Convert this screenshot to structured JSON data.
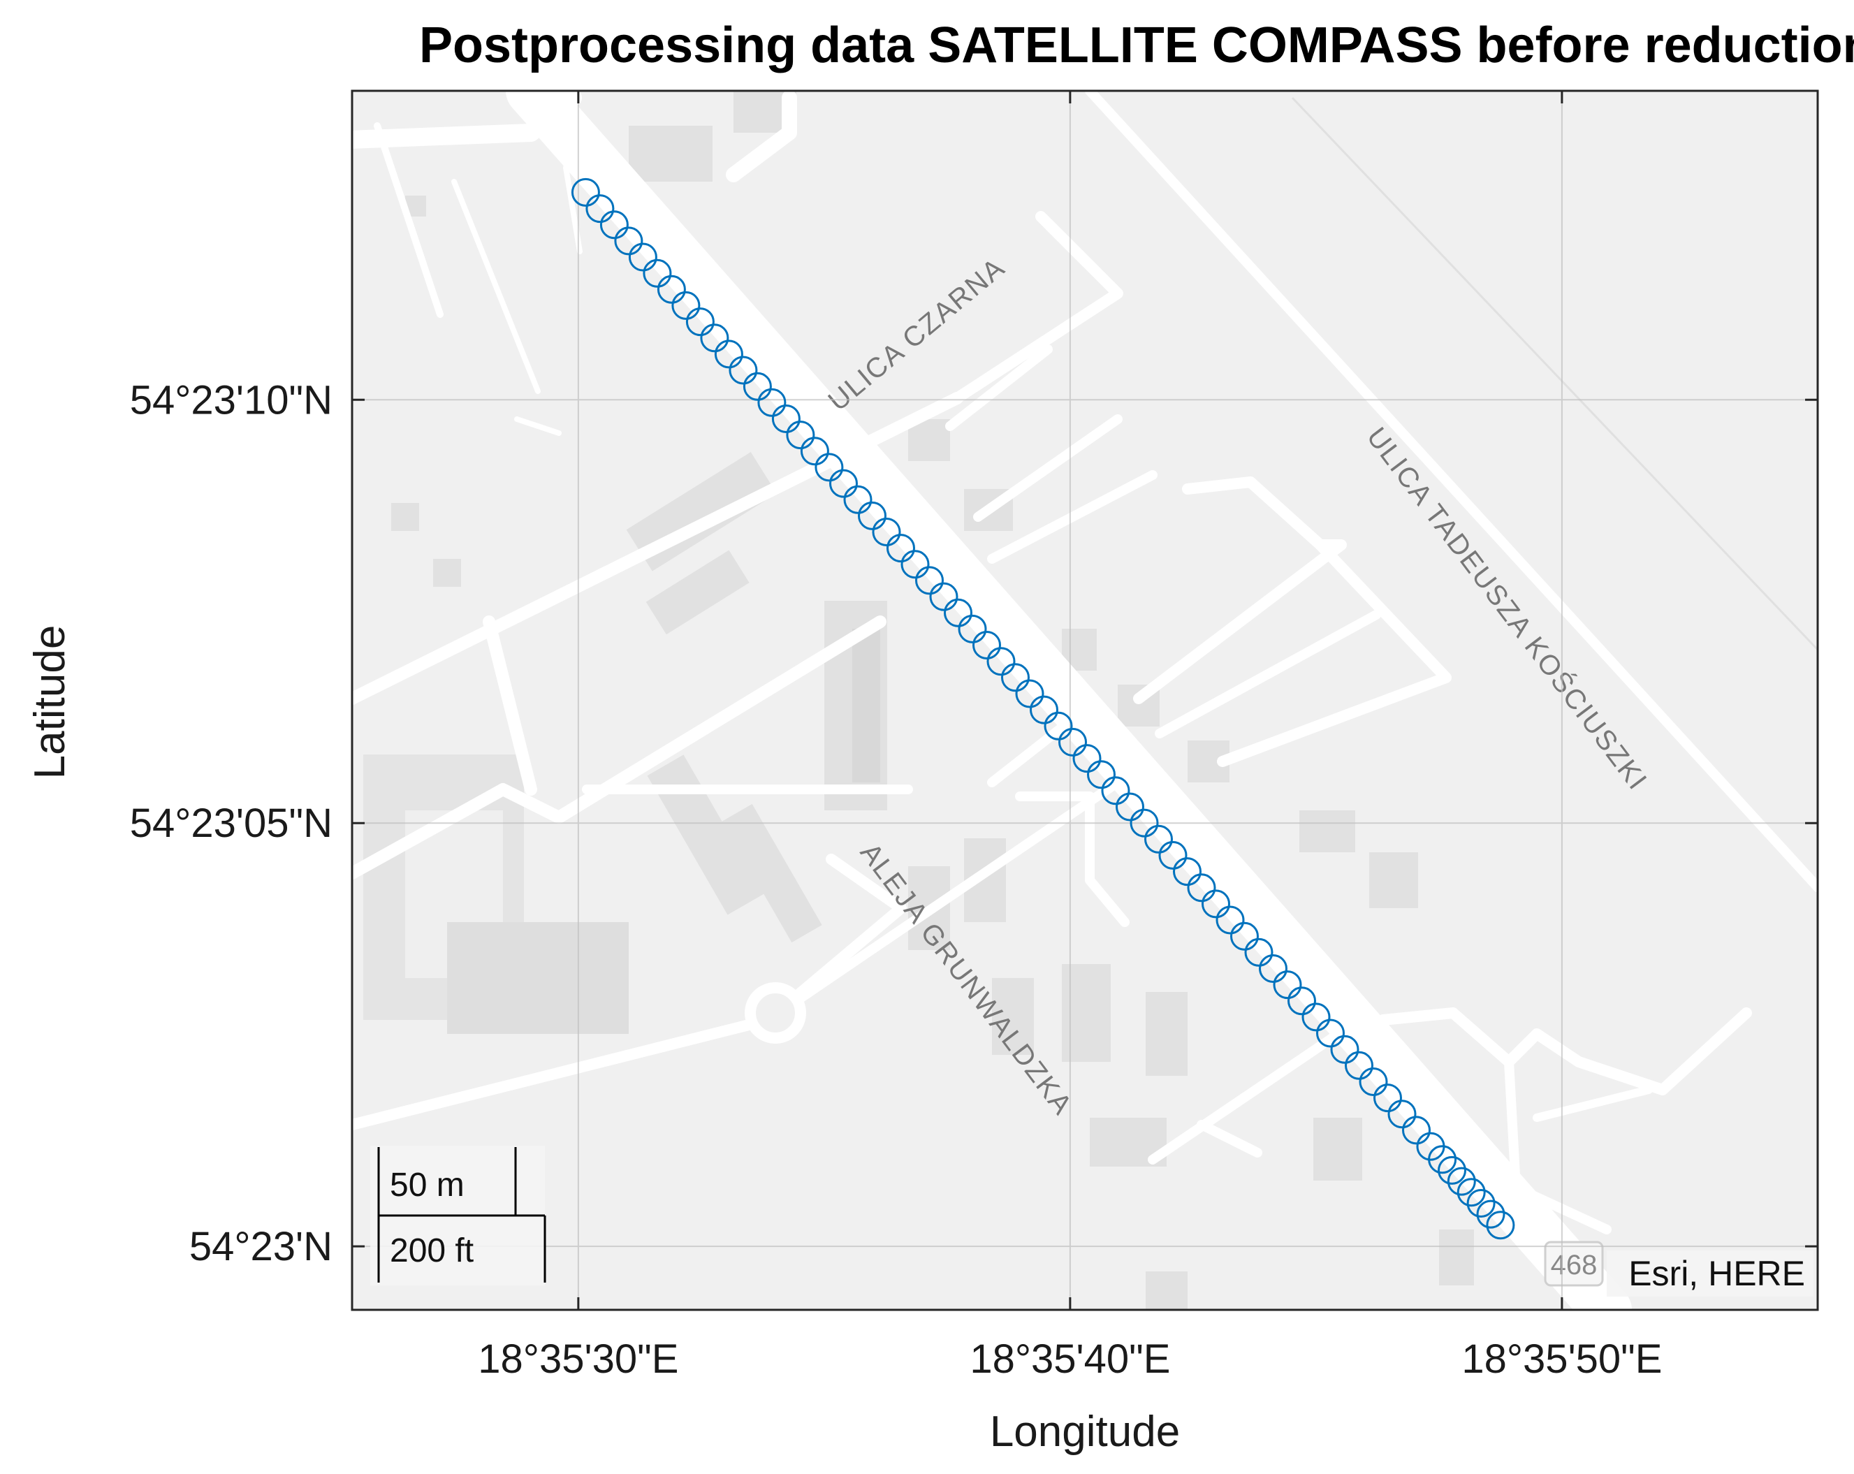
{
  "chart_data": {
    "type": "scatter",
    "title": "Postprocessing data SATELLITE COMPASS before reduction",
    "xlabel": "Longitude",
    "ylabel": "Latitude",
    "x_ticks": [
      {
        "value_s": 30,
        "label": "18°35'30\"E"
      },
      {
        "value_s": 40,
        "label": "18°35'40\"E"
      },
      {
        "value_s": 50,
        "label": "18°35'50\"E"
      }
    ],
    "y_ticks": [
      {
        "value_s": 10,
        "label": "54°23'10\"N"
      },
      {
        "value_s": 5,
        "label": "54°23'05\"N"
      },
      {
        "value_s": 0,
        "label": "54°23'N"
      }
    ],
    "xlim_seconds": [
      25.4,
      55.2
    ],
    "ylim_seconds": [
      -0.75,
      13.65
    ],
    "series": [
      {
        "name": "SATELLITE COMPASS",
        "marker": "circle",
        "color": "#0072BD",
        "start": {
          "lon_s": 30.15,
          "lat_s": 12.45
        },
        "end": {
          "lon_s": 48.75,
          "lat_s": 0.25
        },
        "point_count": 67
      }
    ],
    "grid": true
  },
  "map": {
    "streets": [
      {
        "name": "ULICA CZARNA"
      },
      {
        "name": "ULICA TADEUSZA KOŚCIUSZKI"
      },
      {
        "name": "ALEJA GRUNWALDZKA"
      }
    ],
    "road_badge": "468",
    "attribution": "Esri, HERE"
  },
  "scalebar": {
    "metric": "50 m",
    "imperial": "200 ft"
  }
}
